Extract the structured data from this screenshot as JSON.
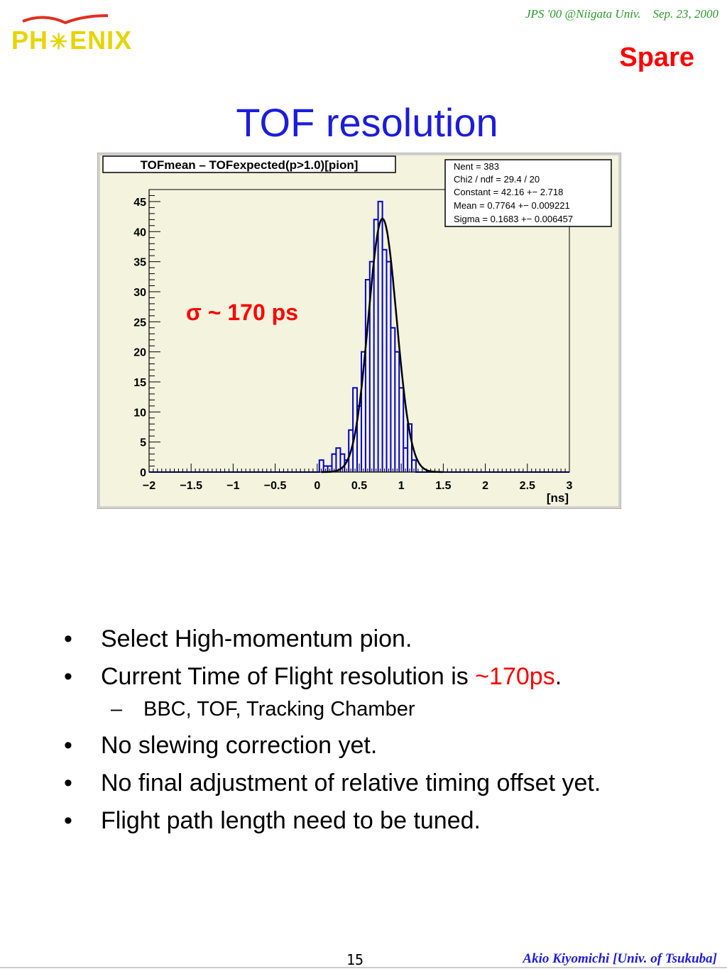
{
  "header": {
    "conference": "JPS '00 @Niigata Univ.    Sep. 23, 2000",
    "tag": "Spare",
    "logo_text": "PH ENIX"
  },
  "slide": {
    "title": "TOF resolution",
    "annotation": "σ ~ 170 ps",
    "bullets": [
      {
        "text": "Select High-momentum pion."
      },
      {
        "text": "Current Time of Flight resolution is ",
        "highlight": "~170ps",
        "tail": "."
      },
      {
        "text": "BBC, TOF, Tracking Chamber",
        "level": 2
      },
      {
        "text": "No slewing correction yet."
      },
      {
        "text": "No final adjustment of relative timing offset yet."
      },
      {
        "text": "Flight path length need to be tuned."
      }
    ],
    "bullet_symbol": "•",
    "sub_bullet_symbol": "–"
  },
  "footer": {
    "page_number": "15",
    "author": "Akio Kiyomichi [Univ. of Tsukuba]"
  },
  "colors": {
    "title": "#1c1cdc",
    "highlight": "#ff0000",
    "conference": "#2a9a2a",
    "histogram": "#0000cc",
    "fit": "#000000",
    "pad_fill": "#f3f3de",
    "frame_fill": "#d8d8d8"
  },
  "chart_data": {
    "type": "histogram",
    "title": "TOFmean – TOFexpected(p>1.0)[pion]",
    "xlabel": "[ns]",
    "ylabel": "",
    "xlim": [
      -2,
      3
    ],
    "ylim": [
      0,
      47
    ],
    "xticks": [
      "−2",
      "−1.5",
      "−1",
      "−0.5",
      "0",
      "0.5",
      "1",
      "1.5",
      "2",
      "2.5",
      "3"
    ],
    "yticks": [
      "0",
      "5",
      "10",
      "15",
      "20",
      "25",
      "30",
      "35",
      "40",
      "45"
    ],
    "bin_width": 0.05,
    "bins": [
      {
        "x": 0.05,
        "y": 2
      },
      {
        "x": 0.1,
        "y": 1
      },
      {
        "x": 0.15,
        "y": 1
      },
      {
        "x": 0.2,
        "y": 3
      },
      {
        "x": 0.25,
        "y": 4
      },
      {
        "x": 0.3,
        "y": 3
      },
      {
        "x": 0.35,
        "y": 2
      },
      {
        "x": 0.4,
        "y": 7
      },
      {
        "x": 0.45,
        "y": 14
      },
      {
        "x": 0.5,
        "y": 11
      },
      {
        "x": 0.55,
        "y": 20
      },
      {
        "x": 0.6,
        "y": 32
      },
      {
        "x": 0.65,
        "y": 35
      },
      {
        "x": 0.7,
        "y": 42
      },
      {
        "x": 0.75,
        "y": 45
      },
      {
        "x": 0.8,
        "y": 37
      },
      {
        "x": 0.85,
        "y": 35
      },
      {
        "x": 0.9,
        "y": 24
      },
      {
        "x": 0.95,
        "y": 20
      },
      {
        "x": 1.0,
        "y": 14
      },
      {
        "x": 1.05,
        "y": 4
      },
      {
        "x": 1.1,
        "y": 8
      },
      {
        "x": 1.15,
        "y": 2
      },
      {
        "x": 1.2,
        "y": 0
      }
    ],
    "fit": {
      "function": "gaus",
      "constant": 42.16,
      "mean": 0.7764,
      "sigma": 0.1683
    },
    "stats": [
      {
        "label": "Nent = 383"
      },
      {
        "label": "Chi2 / ndf =  29.4 / 20"
      },
      {
        "label": "Constant = 42.16 +− 2.718"
      },
      {
        "label": "Mean     = 0.7764 +− 0.009221"
      },
      {
        "label": "Sigma    = 0.1683 +− 0.006457"
      }
    ]
  }
}
